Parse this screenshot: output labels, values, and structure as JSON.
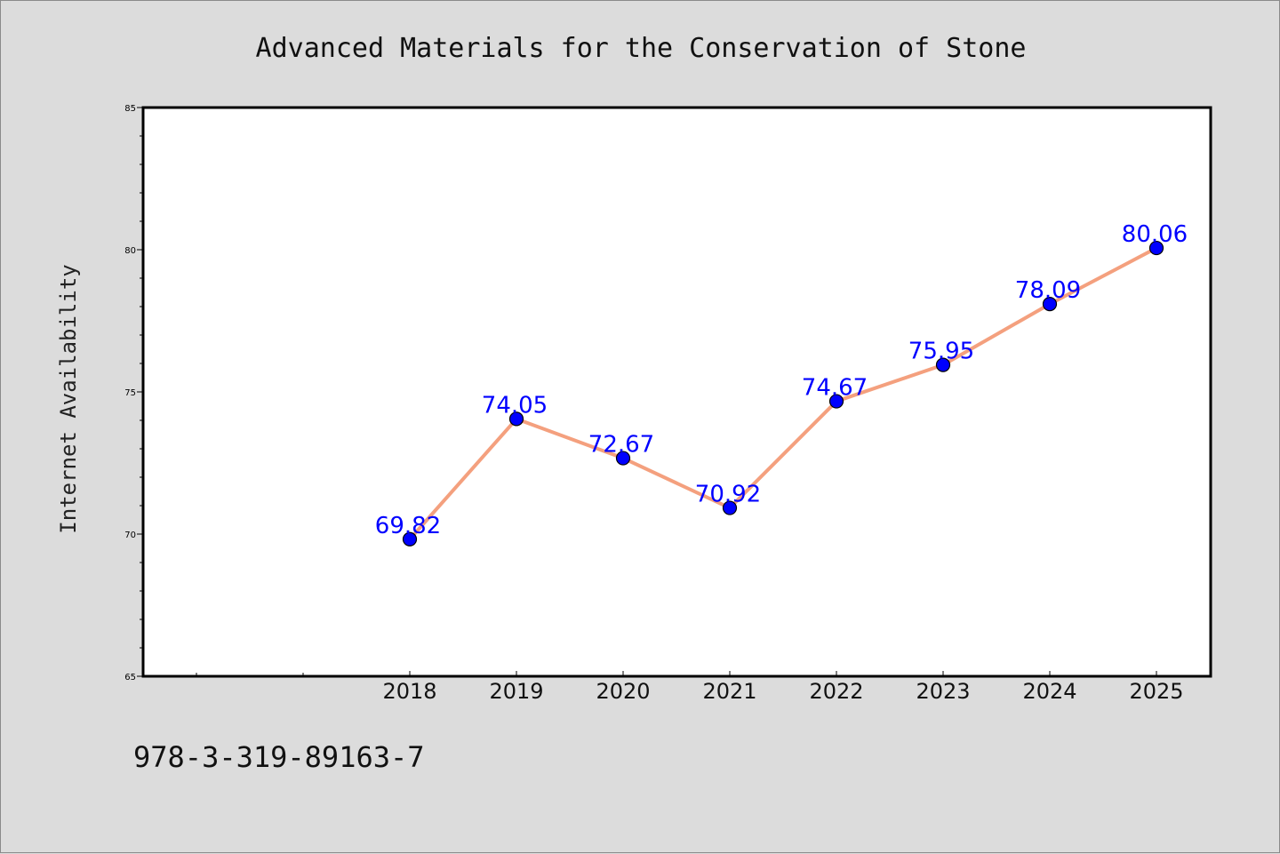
{
  "chart_data": {
    "type": "line",
    "title": "Advanced Materials for the Conservation of Stone",
    "xlabel": "",
    "ylabel": "Internet Availability",
    "categories": [
      "2018",
      "2019",
      "2020",
      "2021",
      "2022",
      "2023",
      "2024",
      "2025"
    ],
    "series": [
      {
        "values": [
          69.82,
          74.05,
          72.67,
          70.92,
          74.67,
          75.95,
          78.09,
          80.06
        ]
      }
    ],
    "data_labels": [
      "69.82",
      "74.05",
      "72.67",
      "70.92",
      "74.67",
      "75.95",
      "78.09",
      "80.06"
    ],
    "ylim": [
      65,
      85
    ],
    "yticks": [
      "65",
      "70",
      "75",
      "80",
      "85"
    ],
    "grid": false,
    "legend": false,
    "colors": {
      "line": "#f4a07e",
      "marker": "#0000ff",
      "label": "#0000ff",
      "background": "#dcdcdc",
      "plot_area": "#ffffff"
    }
  },
  "footer": {
    "isbn": "978-3-319-89163-7"
  }
}
